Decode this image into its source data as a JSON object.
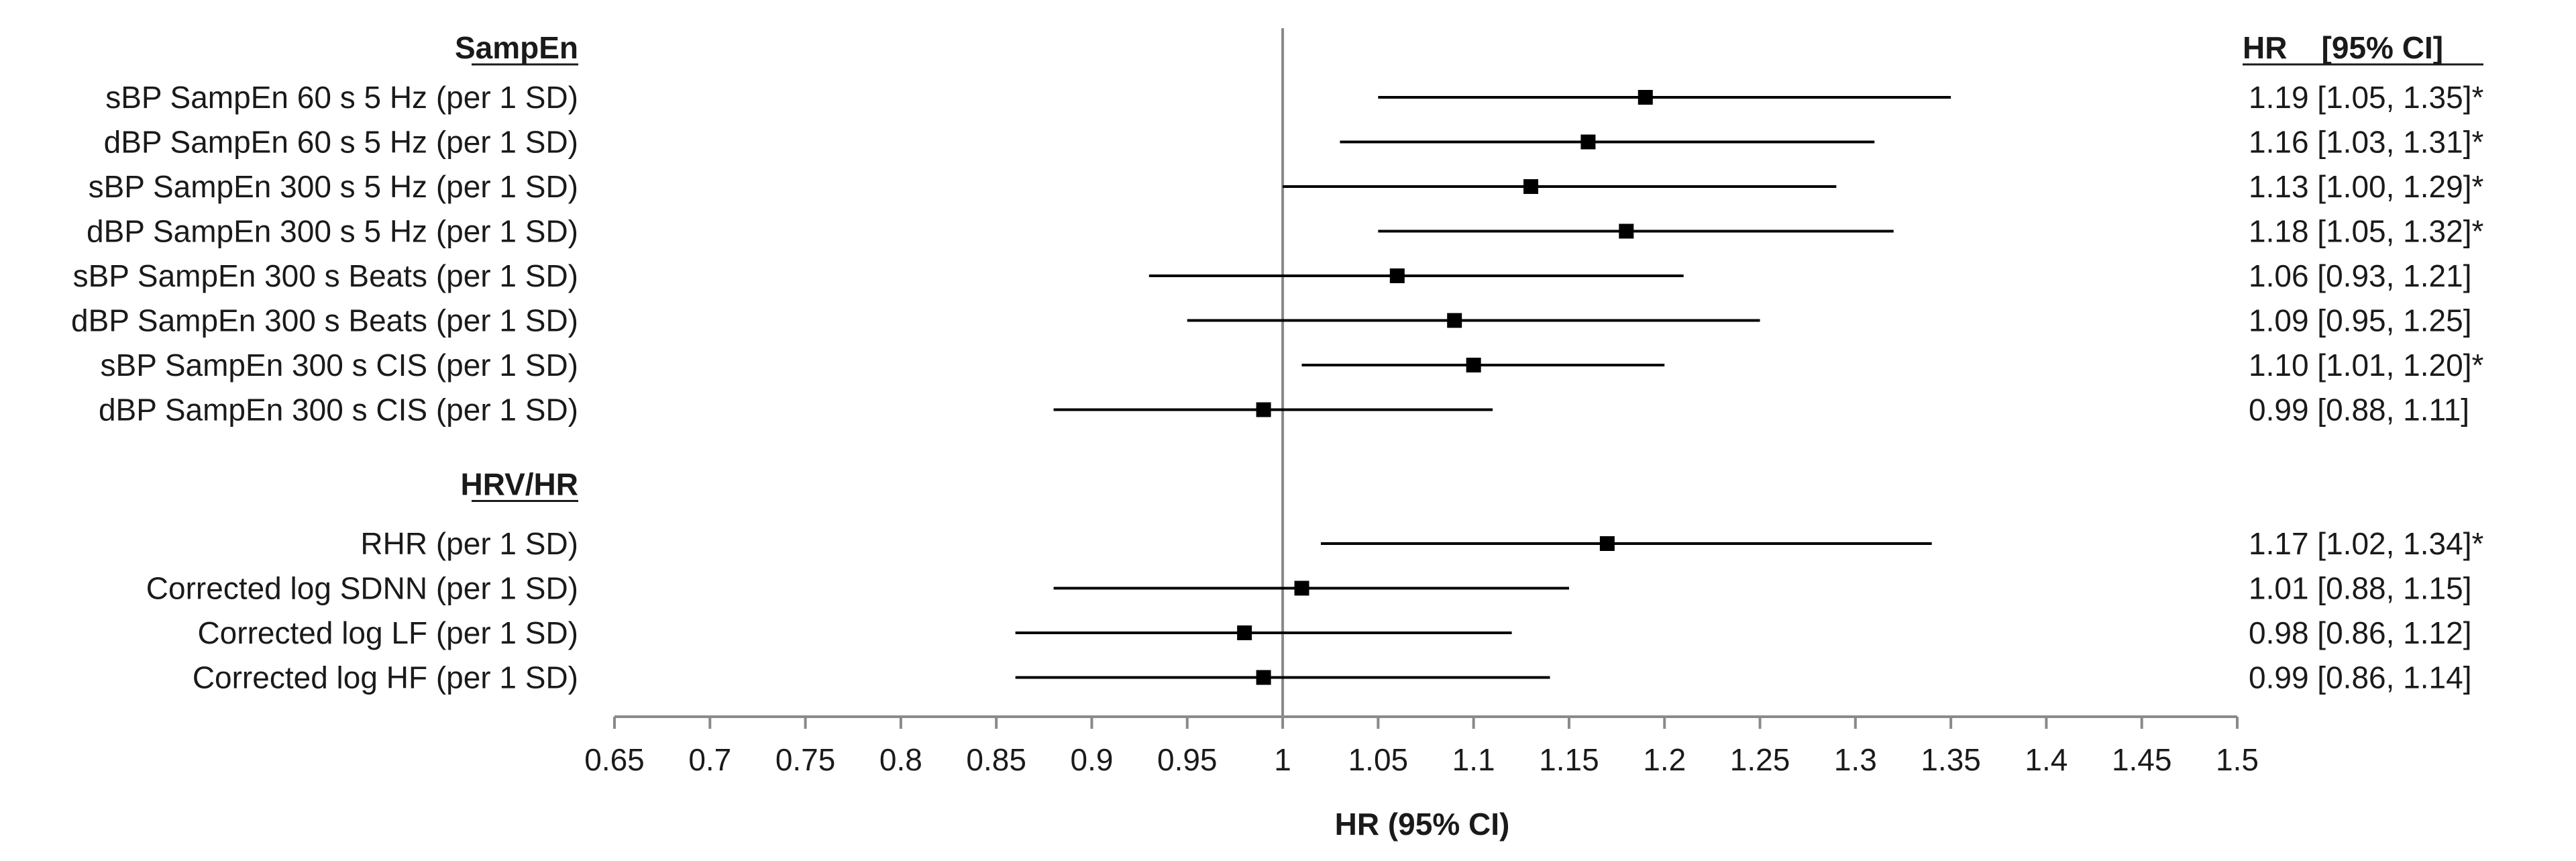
{
  "chart_data": {
    "type": "forest",
    "xlabel": "HR (95% CI)",
    "xlim": [
      0.65,
      1.5
    ],
    "xticks": [
      "0.65",
      "0.7",
      "0.75",
      "0.8",
      "0.85",
      "0.9",
      "0.95",
      "1",
      "1.05",
      "1.1",
      "1.15",
      "1.2",
      "1.25",
      "1.3",
      "1.35",
      "1.4",
      "1.45",
      "1.5"
    ],
    "reference_line": 1,
    "ci_header": "HR    [95% CI]",
    "groups": [
      {
        "title": "SampEn",
        "rows": [
          {
            "label": "sBP SampEn 60 s 5 Hz (per 1 SD)",
            "hr": 1.19,
            "lo": 1.05,
            "hi": 1.35,
            "text": "1.19 [1.05, 1.35]*"
          },
          {
            "label": "dBP SampEn 60 s 5 Hz (per 1 SD)",
            "hr": 1.16,
            "lo": 1.03,
            "hi": 1.31,
            "text": "1.16 [1.03, 1.31]*"
          },
          {
            "label": "sBP SampEn 300 s 5 Hz (per 1 SD)",
            "hr": 1.13,
            "lo": 1.0,
            "hi": 1.29,
            "text": "1.13 [1.00, 1.29]*"
          },
          {
            "label": "dBP SampEn 300 s 5 Hz (per 1 SD)",
            "hr": 1.18,
            "lo": 1.05,
            "hi": 1.32,
            "text": "1.18 [1.05, 1.32]*"
          },
          {
            "label": "sBP SampEn 300 s Beats (per 1 SD)",
            "hr": 1.06,
            "lo": 0.93,
            "hi": 1.21,
            "text": "1.06 [0.93, 1.21]"
          },
          {
            "label": "dBP SampEn 300 s Beats (per 1 SD)",
            "hr": 1.09,
            "lo": 0.95,
            "hi": 1.25,
            "text": "1.09 [0.95, 1.25]"
          },
          {
            "label": "sBP SampEn 300 s CIS (per 1 SD)",
            "hr": 1.1,
            "lo": 1.01,
            "hi": 1.2,
            "text": "1.10 [1.01, 1.20]*"
          },
          {
            "label": "dBP SampEn 300 s CIS (per 1 SD)",
            "hr": 0.99,
            "lo": 0.88,
            "hi": 1.11,
            "text": "0.99 [0.88, 1.11]"
          }
        ]
      },
      {
        "title": "HRV/HR",
        "rows": [
          {
            "label": "RHR (per 1 SD)",
            "hr": 1.17,
            "lo": 1.02,
            "hi": 1.34,
            "text": "1.17 [1.02, 1.34]*"
          },
          {
            "label": "Corrected log SDNN (per 1 SD)",
            "hr": 1.01,
            "lo": 0.88,
            "hi": 1.15,
            "text": "1.01 [0.88, 1.15]"
          },
          {
            "label": "Corrected log LF (per 1 SD)",
            "hr": 0.98,
            "lo": 0.86,
            "hi": 1.12,
            "text": "0.98 [0.86, 1.12]"
          },
          {
            "label": "Corrected log HF (per 1 SD)",
            "hr": 0.99,
            "lo": 0.86,
            "hi": 1.14,
            "text": "0.99 [0.86, 1.14]"
          }
        ]
      }
    ]
  }
}
